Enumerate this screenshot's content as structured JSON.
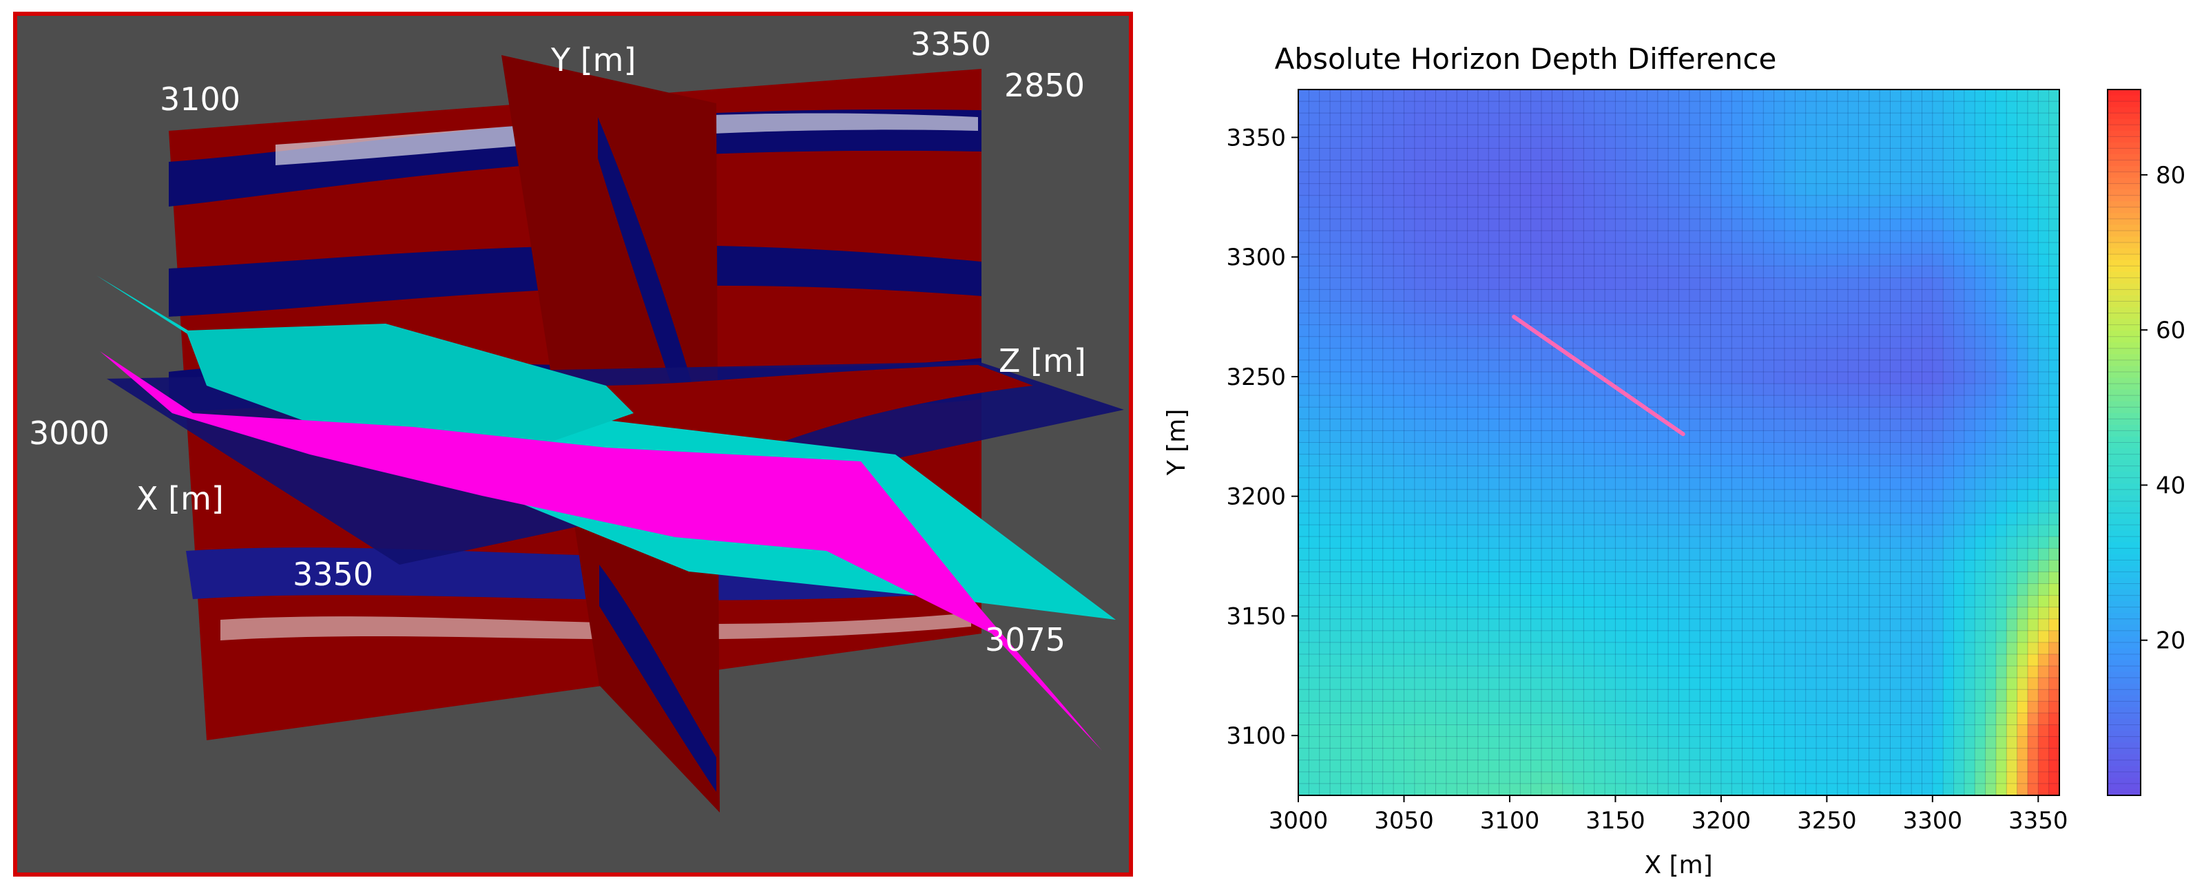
{
  "scene3d": {
    "labels": {
      "y_axis": "Y [m]",
      "z_axis": "Z [m]",
      "x_axis": "X [m]",
      "t3100": "3100",
      "t3350_top": "3350",
      "t2850": "2850",
      "t3000": "3000",
      "t3350_bottom": "3350",
      "t3075": "3075"
    },
    "colors": {
      "frame": "#d40000",
      "background": "#4d4d4d",
      "seismic_red": "#8b0000",
      "seismic_blue": "#0a0a6e",
      "horizon_cyan": "#00d0c8",
      "horizon_magenta": "#ff00e6"
    }
  },
  "chart_data": {
    "type": "heatmap",
    "title": "Absolute Horizon Depth Difference",
    "xlabel": "X [m]",
    "ylabel": "Y [m]",
    "xlim": [
      3000,
      3360
    ],
    "ylim": [
      3075,
      3370
    ],
    "xticks": [
      3000,
      3050,
      3100,
      3150,
      3200,
      3250,
      3300,
      3350
    ],
    "yticks": [
      3100,
      3150,
      3200,
      3250,
      3300,
      3350
    ],
    "colorbar": {
      "range": [
        0,
        91
      ],
      "ticks": [
        20,
        40,
        60,
        80
      ],
      "colormap": "rainbow"
    },
    "grid": true,
    "well_path": {
      "color": "#ff69b4",
      "points": [
        [
          3102,
          3275
        ],
        [
          3182,
          3226
        ]
      ]
    },
    "values_grid": {
      "x": [
        3000,
        3060,
        3120,
        3180,
        3240,
        3300,
        3330,
        3350,
        3360
      ],
      "y": [
        3370,
        3330,
        3290,
        3250,
        3210,
        3170,
        3130,
        3100,
        3075
      ],
      "z": [
        [
          12,
          8,
          9,
          14,
          22,
          26,
          32,
          36,
          40
        ],
        [
          10,
          6,
          5,
          12,
          24,
          24,
          30,
          34,
          38
        ],
        [
          14,
          8,
          6,
          8,
          12,
          10,
          20,
          30,
          34
        ],
        [
          20,
          16,
          14,
          12,
          8,
          6,
          14,
          26,
          30
        ],
        [
          28,
          24,
          22,
          20,
          18,
          16,
          24,
          28,
          32
        ],
        [
          34,
          32,
          30,
          28,
          28,
          26,
          38,
          50,
          56
        ],
        [
          40,
          40,
          38,
          32,
          28,
          26,
          46,
          72,
          80
        ],
        [
          44,
          46,
          44,
          36,
          30,
          28,
          52,
          84,
          90
        ],
        [
          42,
          46,
          48,
          40,
          32,
          30,
          56,
          86,
          90
        ]
      ]
    }
  }
}
